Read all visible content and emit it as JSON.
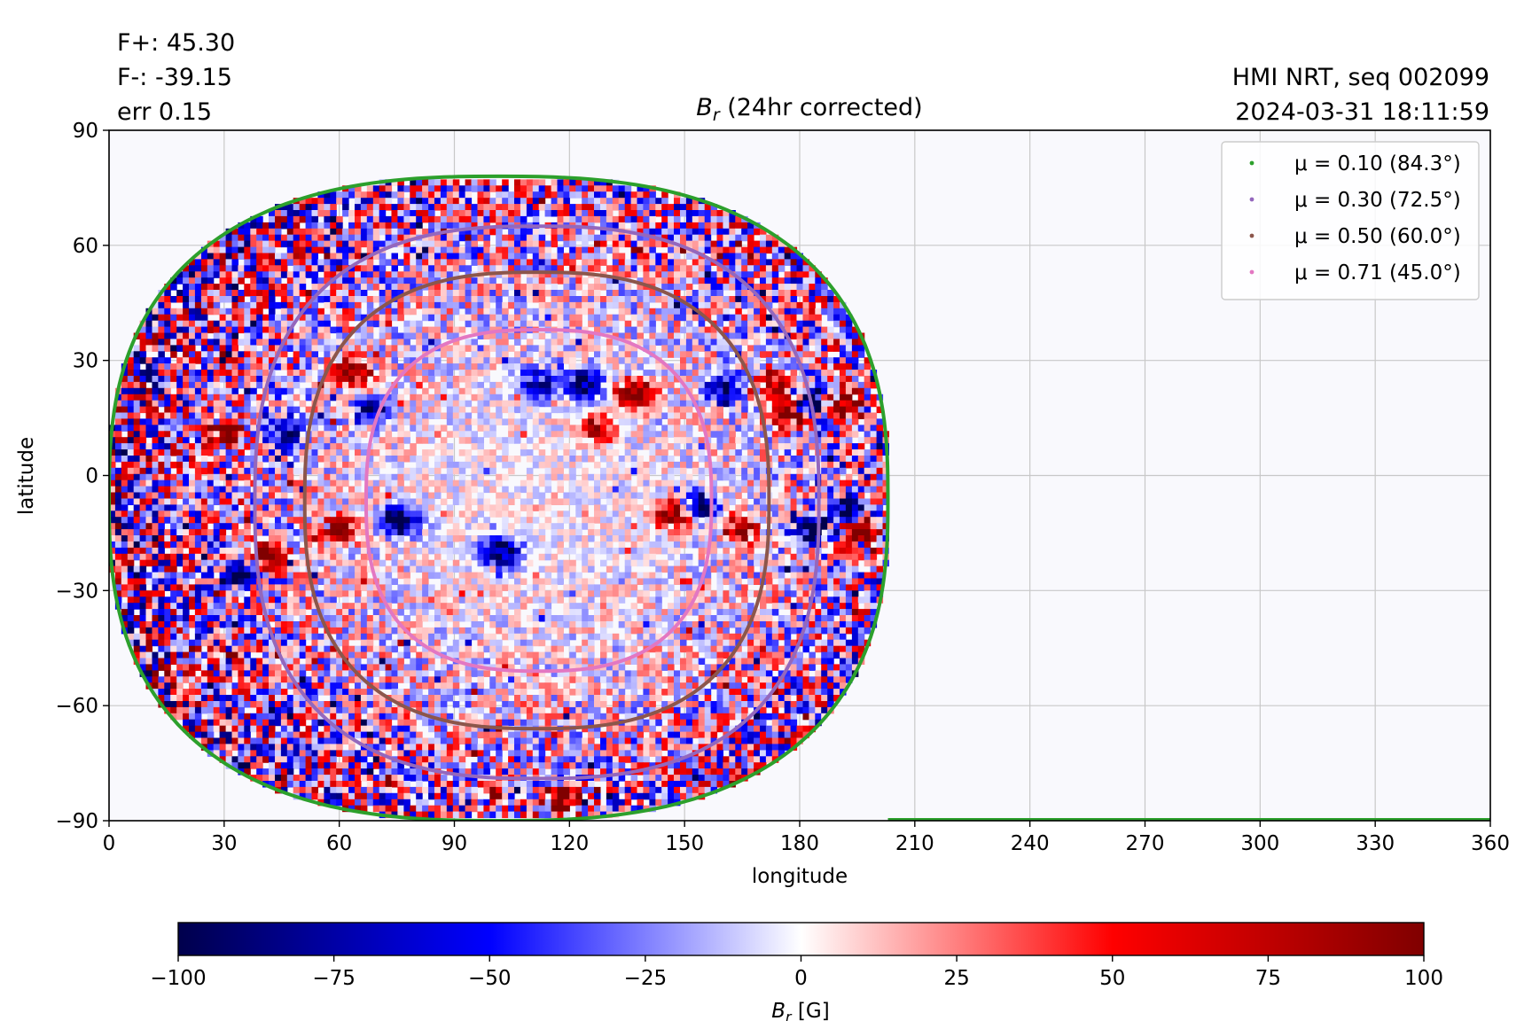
{
  "stats": {
    "f_plus": "F+: 45.30",
    "f_minus": "F-: -39.15",
    "err": "err 0.15"
  },
  "source": {
    "line1": "HMI NRT, seq 002099",
    "line2": "2024-03-31 18:11:59"
  },
  "chart_data": {
    "type": "heatmap",
    "title_symbol": "B",
    "title_subscript": "r",
    "title_rest": " (24hr corrected)",
    "xlabel": "longitude",
    "ylabel": "latitude",
    "xlim": [
      0,
      360
    ],
    "ylim": [
      -90,
      90
    ],
    "xticks": [
      0,
      30,
      60,
      90,
      120,
      150,
      180,
      210,
      240,
      270,
      300,
      330,
      360
    ],
    "yticks": [
      -90,
      -60,
      -30,
      0,
      30,
      60,
      90
    ],
    "ytick_labels": [
      "−90",
      "−60",
      "−30",
      "0",
      "30",
      "60",
      "90"
    ],
    "grid": true,
    "legend_position": "top-right",
    "disk_center_lon": 112,
    "disk_center_lat": -6,
    "limb_series": [
      {
        "name": "μ = 0.10 (84.3°)",
        "color": "#2ca02c",
        "lon_west": 0,
        "lon_east": 203,
        "lat_top": 78,
        "lat_bottom": -90
      },
      {
        "name": "μ = 0.30 (72.5°)",
        "color": "#9467bd",
        "lon_west": 38,
        "lon_east": 185,
        "lat_top": 65,
        "lat_bottom": -79
      },
      {
        "name": "μ = 0.50 (60.0°)",
        "color": "#8c564b",
        "lon_west": 51,
        "lon_east": 172,
        "lat_top": 53,
        "lat_bottom": -66
      },
      {
        "name": "μ = 0.71 (45.0°)",
        "color": "#e377c2",
        "lon_west": 67,
        "lon_east": 157,
        "lat_top": 38,
        "lat_bottom": -51
      }
    ],
    "active_regions": [
      {
        "lon": 137,
        "lat": 21,
        "sign": 1,
        "strength": 0.9
      },
      {
        "lon": 124,
        "lat": 24,
        "sign": -1,
        "strength": 0.8
      },
      {
        "lon": 112,
        "lat": 24,
        "sign": -1,
        "strength": 0.6
      },
      {
        "lon": 178,
        "lat": 16,
        "sign": 1,
        "strength": 0.9
      },
      {
        "lon": 183,
        "lat": 19,
        "sign": -1,
        "strength": 0.9
      },
      {
        "lon": 191,
        "lat": 18,
        "sign": 1,
        "strength": 0.8
      },
      {
        "lon": 174,
        "lat": 24,
        "sign": 1,
        "strength": 0.6
      },
      {
        "lon": 160,
        "lat": 22,
        "sign": -1,
        "strength": 0.6
      },
      {
        "lon": 76,
        "lat": -12,
        "sign": -1,
        "strength": 0.9
      },
      {
        "lon": 102,
        "lat": -20,
        "sign": -1,
        "strength": 0.8
      },
      {
        "lon": 60,
        "lat": -14,
        "sign": 1,
        "strength": 0.8
      },
      {
        "lon": 41,
        "lat": -21,
        "sign": 1,
        "strength": 0.9
      },
      {
        "lon": 35,
        "lat": -25,
        "sign": -1,
        "strength": 0.6
      },
      {
        "lon": 30,
        "lat": 11,
        "sign": 1,
        "strength": 0.8
      },
      {
        "lon": 46,
        "lat": 10,
        "sign": -1,
        "strength": 0.6
      },
      {
        "lon": 63,
        "lat": 27,
        "sign": 1,
        "strength": 0.6
      },
      {
        "lon": 147,
        "lat": -10,
        "sign": 1,
        "strength": 0.8
      },
      {
        "lon": 154,
        "lat": -8,
        "sign": -1,
        "strength": 0.6
      },
      {
        "lon": 165,
        "lat": -14,
        "sign": 1,
        "strength": 0.6
      },
      {
        "lon": 183,
        "lat": -14,
        "sign": -1,
        "strength": 0.7
      },
      {
        "lon": 193,
        "lat": -9,
        "sign": -1,
        "strength": 0.8
      },
      {
        "lon": 196,
        "lat": -14,
        "sign": 1,
        "strength": 0.8
      },
      {
        "lon": 127,
        "lat": 12,
        "sign": 1,
        "strength": 0.5
      },
      {
        "lon": 68,
        "lat": 17,
        "sign": -1,
        "strength": 0.5
      },
      {
        "lon": 118,
        "lat": -84,
        "sign": 1,
        "strength": 0.7
      }
    ],
    "colorbar": {
      "min": -100,
      "max": 100,
      "ticks": [
        -100,
        -75,
        -50,
        -25,
        0,
        25,
        50,
        75,
        100
      ],
      "tick_labels": [
        "−100",
        "−75",
        "−50",
        "−25",
        "0",
        "25",
        "50",
        "75",
        "100"
      ],
      "colors": [
        "#00004c",
        "#0000ff",
        "#ffffff",
        "#ff0000",
        "#800000"
      ],
      "label_symbol": "B",
      "label_subscript": "r",
      "label_unit": " [G]"
    }
  }
}
